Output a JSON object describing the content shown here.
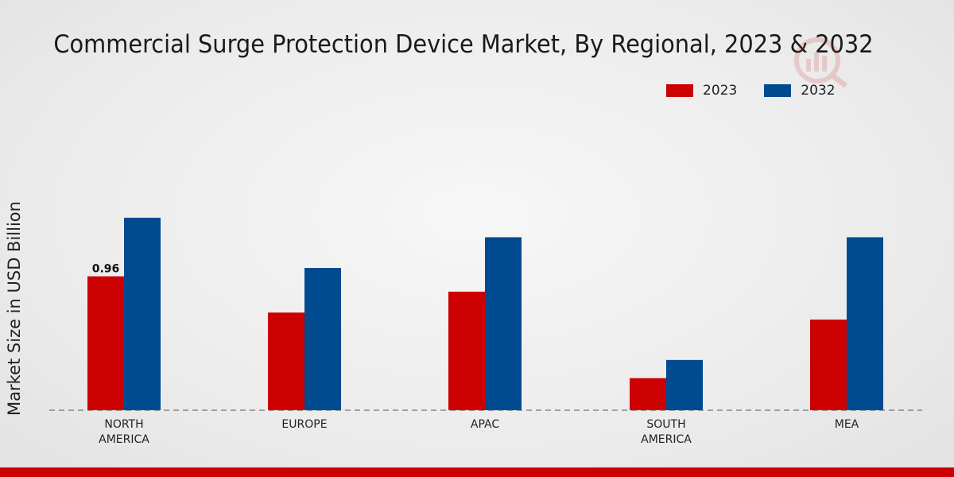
{
  "chart_data": {
    "type": "bar",
    "title": "Commercial Surge Protection Device Market, By Regional, 2023 & 2032",
    "xlabel": "",
    "ylabel": "Market Size in USD Billion",
    "categories": [
      [
        "NORTH",
        "AMERICA"
      ],
      [
        "EUROPE"
      ],
      [
        "APAC"
      ],
      [
        "SOUTH",
        "AMERICA"
      ],
      [
        "MEA"
      ]
    ],
    "series": [
      {
        "name": "2023",
        "color": "#cc0000",
        "values": [
          0.96,
          0.7,
          0.85,
          0.23,
          0.65
        ]
      },
      {
        "name": "2032",
        "color": "#004a8f",
        "values": [
          1.38,
          1.02,
          1.24,
          0.36,
          1.24
        ]
      }
    ],
    "data_labels": [
      {
        "series": 0,
        "index": 0,
        "text": "0.96"
      }
    ],
    "ylim": [
      0,
      2.2
    ],
    "grid": false,
    "legend": "top-right"
  }
}
